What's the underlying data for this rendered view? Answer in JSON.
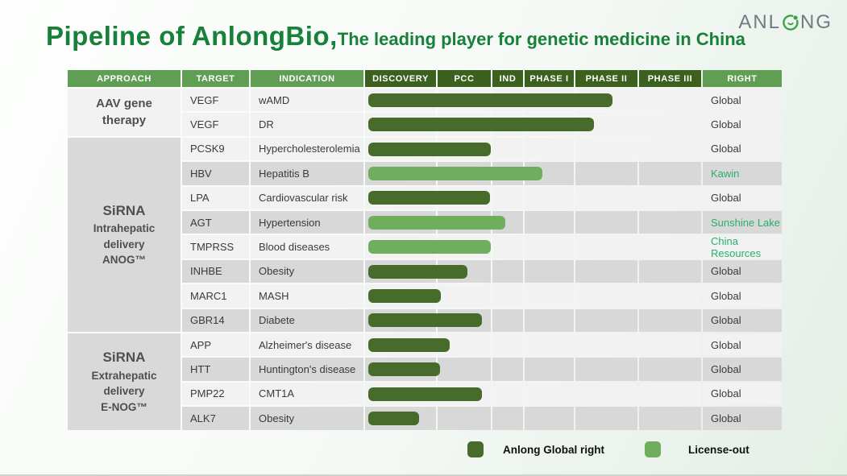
{
  "title": {
    "main": "Pipeline of AnlongBio,",
    "sub": "The leading player for genetic medicine in China"
  },
  "logo": {
    "text_before": "ANL",
    "text_after": "NG",
    "emblem": "anlong-o-leaf-icon"
  },
  "colors": {
    "title_green": "#17803a",
    "header_light_green": "#5f9e53",
    "header_dark_green": "#3c611f",
    "anlong_bar": "#476b2b",
    "license_bar": "#6fae5f",
    "partner_text": "#27b06a"
  },
  "headers": {
    "left": [
      "APPROACH",
      "TARGET",
      "INDICATION"
    ],
    "right": "RIGHT"
  },
  "legend": [
    {
      "label": "Anlong Global right",
      "swatch_color": "#476b2b"
    },
    {
      "label": "License-out",
      "swatch_color": "#6fae5f"
    }
  ],
  "chart_data": {
    "type": "gantt",
    "title": "Pipeline of AnlongBio",
    "stage_columns": [
      "DISCOVERY",
      "PCC",
      "IND",
      "PHASE I",
      "PHASE II",
      "PHASE III"
    ],
    "progress_scale_note": "progress measured in stage units: 0=start of DISCOVERY, 1=start of PCC, 2=start of IND, 3=start of PHASE I, 4=start of PHASE II, 5=start of PHASE III, 6=end of PHASE III",
    "legend": [
      "Anlong Global right",
      "License-out"
    ],
    "sections": [
      {
        "approach_lines": [
          "AAV gene",
          "therapy"
        ],
        "rows": [
          {
            "target": "VEGF",
            "indication": "wAMD",
            "progress": 4.58,
            "bar": "anlong",
            "right": "Global",
            "right_partner": false
          },
          {
            "target": "VEGF",
            "indication": "DR",
            "progress": 4.29,
            "bar": "anlong",
            "right": "Global",
            "right_partner": false
          }
        ]
      },
      {
        "approach_lines": [
          "SiRNA",
          "Intrahepatic",
          "delivery",
          "ANOG™"
        ],
        "rows": [
          {
            "target": "PCSK9",
            "indication": "Hypercholesterolemia",
            "progress": 1.97,
            "bar": "anlong",
            "right": "Global",
            "right_partner": false
          },
          {
            "target": "HBV",
            "indication": "Hepatitis B",
            "progress": 3.35,
            "bar": "license",
            "right": "Kawin",
            "right_partner": true
          },
          {
            "target": "LPA",
            "indication": "Cardiovascular risk",
            "progress": 1.96,
            "bar": "anlong",
            "right": "Global",
            "right_partner": false
          },
          {
            "target": "AGT",
            "indication": "Hypertension",
            "progress": 2.41,
            "bar": "license",
            "right": "Sunshine Lake",
            "right_partner": true
          },
          {
            "target": "TMPRSS",
            "indication": "Blood diseases",
            "progress": 1.97,
            "bar": "license",
            "right": "China Resources",
            "right_partner": true
          },
          {
            "target": "INHBE",
            "indication": "Obesity",
            "progress": 1.54,
            "bar": "anlong",
            "right": "Global",
            "right_partner": false
          },
          {
            "target": "MARC1",
            "indication": "MASH",
            "progress": 1.06,
            "bar": "anlong",
            "right": "Global",
            "right_partner": false
          },
          {
            "target": "GBR14",
            "indication": "Diabete",
            "progress": 1.81,
            "bar": "anlong",
            "right": "Global",
            "right_partner": false
          }
        ]
      },
      {
        "approach_lines": [
          "SiRNA",
          "Extrahepatic",
          "delivery",
          "E-NOG™"
        ],
        "rows": [
          {
            "target": "APP",
            "indication": "Alzheimer's disease",
            "progress": 1.22,
            "bar": "anlong",
            "right": "Global",
            "right_partner": false
          },
          {
            "target": "HTT",
            "indication": "Huntington's disease",
            "progress": 1.04,
            "bar": "anlong",
            "right": "Global",
            "right_partner": false
          },
          {
            "target": "PMP22",
            "indication": "CMT1A",
            "progress": 1.81,
            "bar": "anlong",
            "right": "Global",
            "right_partner": false
          },
          {
            "target": "ALK7",
            "indication": "Obesity",
            "progress": 0.74,
            "bar": "anlong",
            "right": "Global",
            "right_partner": false
          }
        ]
      }
    ]
  }
}
